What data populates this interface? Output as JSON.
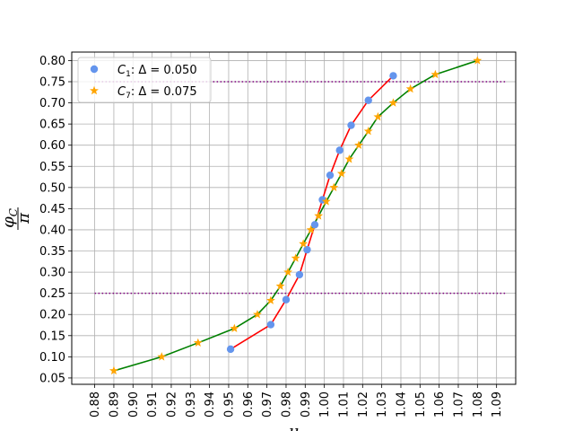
{
  "chart_data": {
    "type": "scatter",
    "xlabel": "μ",
    "ylabel": "φ_C / π",
    "ylabel_num": "φ",
    "ylabel_num_sub": "C",
    "ylabel_den": "π",
    "xlim": [
      0.868,
      1.1
    ],
    "ylim": [
      0.035,
      0.82
    ],
    "grid": true,
    "legend_position": "upper-left",
    "x_ticks": [
      0.88,
      0.89,
      0.9,
      0.91,
      0.92,
      0.93,
      0.94,
      0.95,
      0.96,
      0.97,
      0.98,
      0.99,
      1.0,
      1.01,
      1.02,
      1.03,
      1.04,
      1.05,
      1.06,
      1.07,
      1.08,
      1.09
    ],
    "x_tick_labels": [
      "0.88",
      "0.89",
      "0.90",
      "0.91",
      "0.92",
      "0.93",
      "0.94",
      "0.95",
      "0.96",
      "0.97",
      "0.98",
      "0.99",
      "1.00",
      "1.01",
      "1.02",
      "1.03",
      "1.04",
      "1.05",
      "1.06",
      "1.07",
      "1.08",
      "1.09"
    ],
    "y_ticks": [
      0.05,
      0.1,
      0.15,
      0.2,
      0.25,
      0.3,
      0.35,
      0.4,
      0.45,
      0.5,
      0.55,
      0.6,
      0.65,
      0.7,
      0.75,
      0.8
    ],
    "y_tick_labels": [
      "0.05",
      "0.10",
      "0.15",
      "0.20",
      "0.25",
      "0.30",
      "0.35",
      "0.40",
      "0.45",
      "0.50",
      "0.55",
      "0.60",
      "0.65",
      "0.70",
      "0.75",
      "0.80"
    ],
    "reference_lines": [
      {
        "y": 0.25,
        "x_range": [
          0.88,
          1.095
        ],
        "color": "#800080",
        "style": "dotted"
      },
      {
        "y": 0.75,
        "x_range": [
          0.88,
          1.095
        ],
        "color": "#800080",
        "style": "dotted"
      }
    ],
    "series": [
      {
        "name_prefix": "C",
        "name_sub": "1",
        "name_suffix": ": Δ =  0.050",
        "marker": "circle",
        "marker_color": "#6495ED",
        "line_color": "#ff0000",
        "x": [
          0.951,
          0.972,
          0.98,
          0.987,
          0.991,
          0.995,
          0.999,
          1.003,
          1.008,
          1.014,
          1.023,
          1.036
        ],
        "y": [
          0.118,
          0.176,
          0.235,
          0.294,
          0.353,
          0.412,
          0.471,
          0.529,
          0.588,
          0.647,
          0.706,
          0.764
        ]
      },
      {
        "name_prefix": "C",
        "name_sub": "7",
        "name_suffix": ": Δ =  0.075",
        "marker": "star",
        "marker_color": "#FFA500",
        "line_color": "#008000",
        "x": [
          0.89,
          0.915,
          0.934,
          0.953,
          0.965,
          0.972,
          0.977,
          0.981,
          0.985,
          0.989,
          0.993,
          0.997,
          1.001,
          1.005,
          1.009,
          1.013,
          1.018,
          1.023,
          1.028,
          1.036,
          1.045,
          1.058,
          1.08
        ],
        "y": [
          0.067,
          0.1,
          0.133,
          0.167,
          0.2,
          0.233,
          0.267,
          0.3,
          0.333,
          0.367,
          0.4,
          0.433,
          0.467,
          0.5,
          0.533,
          0.567,
          0.6,
          0.633,
          0.667,
          0.7,
          0.733,
          0.767,
          0.8
        ]
      }
    ]
  }
}
